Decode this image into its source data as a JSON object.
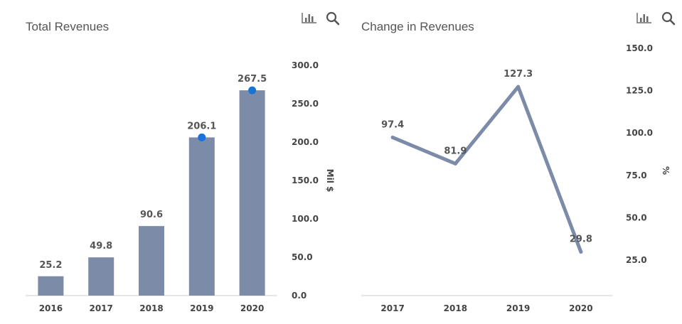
{
  "chart_data": [
    {
      "type": "bar",
      "title": "Total Revenues",
      "categories": [
        "2016",
        "2017",
        "2018",
        "2019",
        "2020"
      ],
      "values": [
        25.2,
        49.8,
        90.6,
        206.1,
        267.5
      ],
      "value_labels": [
        "25.2",
        "49.8",
        "90.6",
        "206.1",
        "267.5"
      ],
      "markers": [
        {
          "category": "2019",
          "value": 206.1
        },
        {
          "category": "2020",
          "value": 267.5
        }
      ],
      "ylabel": "Mil $",
      "yticks": [
        "0.0",
        "50.0",
        "100.0",
        "150.0",
        "200.0",
        "250.0",
        "300.0"
      ],
      "ytick_values": [
        0,
        50,
        100,
        150,
        200,
        250,
        300
      ],
      "ylim": [
        0,
        300
      ],
      "y_axis_side": "right",
      "grid": false,
      "colors": {
        "bar": "#7b8ba8",
        "marker": "#1a73d9"
      }
    },
    {
      "type": "line",
      "title": "Change in Revenues",
      "categories": [
        "2017",
        "2018",
        "2019",
        "2020"
      ],
      "values": [
        97.4,
        81.9,
        127.3,
        29.8
      ],
      "value_labels": [
        "97.4",
        "81.9",
        "127.3",
        "29.8"
      ],
      "ylabel": "%",
      "yticks": [
        "25.0",
        "50.0",
        "75.0",
        "100.0",
        "125.0",
        "150.0"
      ],
      "ytick_values": [
        25,
        50,
        75,
        100,
        125,
        150
      ],
      "ylim": [
        25,
        150
      ],
      "y_axis_side": "right",
      "grid": false,
      "colors": {
        "line": "#7b8ba8"
      }
    }
  ],
  "icons": {
    "chart_type": "bar-chart-icon",
    "zoom": "search-icon"
  }
}
